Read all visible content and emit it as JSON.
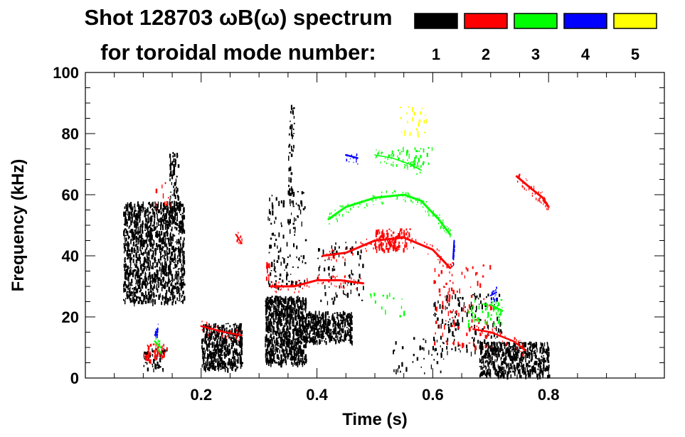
{
  "chart_data": {
    "type": "scatter",
    "title_line1": "Shot 128703 ωB(ω) spectrum",
    "title_line2": "for toroidal mode number:",
    "xlabel": "Time (s)",
    "ylabel": "Frequency (kHz)",
    "xlim": [
      0.0,
      1.0
    ],
    "ylim": [
      0,
      100
    ],
    "x_ticks": [
      {
        "value": 0.2,
        "label": "0.2"
      },
      {
        "value": 0.4,
        "label": "0.4"
      },
      {
        "value": 0.6,
        "label": "0.6"
      },
      {
        "value": 0.8,
        "label": "0.8"
      }
    ],
    "y_ticks": [
      {
        "value": 0,
        "label": "0"
      },
      {
        "value": 20,
        "label": "20"
      },
      {
        "value": 40,
        "label": "40"
      },
      {
        "value": 60,
        "label": "60"
      },
      {
        "value": 80,
        "label": "80"
      },
      {
        "value": 100,
        "label": "100"
      }
    ],
    "legend": {
      "placement": "top-right",
      "entries": [
        {
          "label": "1",
          "color": "#000000"
        },
        {
          "label": "2",
          "color": "#ff0000"
        },
        {
          "label": "3",
          "color": "#00ff00"
        },
        {
          "label": "4",
          "color": "#0000ff"
        },
        {
          "label": "5",
          "color": "#ffff00"
        }
      ]
    },
    "series": [
      {
        "name": "n=1",
        "color": "#000000",
        "regions": [
          {
            "t": [
              0.065,
              0.17
            ],
            "f": [
              25,
              58
            ],
            "density": 0.55,
            "note": "broad burst near 42 kHz"
          },
          {
            "t": [
              0.145,
              0.16
            ],
            "f": [
              52,
              74
            ],
            "density": 0.4
          },
          {
            "t": [
              0.2,
              0.27
            ],
            "f": [
              3,
              18
            ],
            "density": 0.7
          },
          {
            "t": [
              0.31,
              0.38
            ],
            "f": [
              5,
              27
            ],
            "density": 0.85
          },
          {
            "t": [
              0.37,
              0.46
            ],
            "f": [
              12,
              22
            ],
            "density": 0.75
          },
          {
            "t": [
              0.315,
              0.38
            ],
            "f": [
              30,
              62
            ],
            "density": 0.1
          },
          {
            "t": [
              0.35,
              0.36
            ],
            "f": [
              60,
              90
            ],
            "density": 0.25
          },
          {
            "t": [
              0.4,
              0.48
            ],
            "f": [
              25,
              45
            ],
            "density": 0.08
          },
          {
            "t": [
              0.1,
              0.14
            ],
            "f": [
              3,
              10
            ],
            "density": 0.3
          },
          {
            "t": [
              0.68,
              0.8
            ],
            "f": [
              1,
              12
            ],
            "density": 0.6
          },
          {
            "t": [
              0.6,
              0.72
            ],
            "f": [
              8,
              28
            ],
            "density": 0.1
          },
          {
            "t": [
              0.53,
              0.62
            ],
            "f": [
              1,
              14
            ],
            "density": 0.05
          }
        ],
        "lines": []
      },
      {
        "name": "n=2",
        "color": "#ff0000",
        "regions": [
          {
            "t": [
              0.1,
              0.14
            ],
            "f": [
              6,
              12
            ],
            "density": 0.3
          },
          {
            "t": [
              0.12,
              0.15
            ],
            "f": [
              55,
              65
            ],
            "density": 0.06
          },
          {
            "t": [
              0.5,
              0.56
            ],
            "f": [
              42,
              49
            ],
            "density": 0.45
          },
          {
            "t": [
              0.6,
              0.7
            ],
            "f": [
              10,
              38
            ],
            "density": 0.06
          },
          {
            "t": [
              0.31,
              0.32
            ],
            "f": [
              33,
              38
            ],
            "density": 0.3
          }
        ],
        "lines": [
          {
            "points": [
              [
                0.41,
                40
              ],
              [
                0.45,
                41
              ],
              [
                0.5,
                45
              ],
              [
                0.55,
                46
              ],
              [
                0.6,
                42
              ],
              [
                0.63,
                36
              ]
            ],
            "width": 3.0
          },
          {
            "points": [
              [
                0.32,
                30
              ],
              [
                0.36,
                30
              ],
              [
                0.4,
                32
              ],
              [
                0.44,
                32
              ],
              [
                0.48,
                31
              ]
            ],
            "width": 3.0
          },
          {
            "points": [
              [
                0.2,
                17
              ],
              [
                0.24,
                15
              ],
              [
                0.27,
                14
              ]
            ],
            "width": 2.5
          },
          {
            "points": [
              [
                0.67,
                16
              ],
              [
                0.7,
                15
              ],
              [
                0.74,
                12
              ],
              [
                0.76,
                9
              ]
            ],
            "width": 2.5
          },
          {
            "points": [
              [
                0.745,
                66
              ],
              [
                0.77,
                62
              ],
              [
                0.79,
                59
              ],
              [
                0.8,
                56
              ]
            ],
            "width": 3.0
          },
          {
            "points": [
              [
                0.26,
                47
              ],
              [
                0.27,
                44
              ]
            ],
            "width": 2.0
          }
        ]
      },
      {
        "name": "n=3",
        "color": "#00ff00",
        "regions": [
          {
            "t": [
              0.52,
              0.6
            ],
            "f": [
              70,
              76
            ],
            "density": 0.12
          },
          {
            "t": [
              0.66,
              0.72
            ],
            "f": [
              18,
              26
            ],
            "density": 0.15
          },
          {
            "t": [
              0.49,
              0.55
            ],
            "f": [
              20,
              28
            ],
            "density": 0.05
          }
        ],
        "lines": [
          {
            "points": [
              [
                0.42,
                52
              ],
              [
                0.45,
                56
              ],
              [
                0.5,
                59
              ],
              [
                0.55,
                60
              ],
              [
                0.58,
                58
              ],
              [
                0.61,
                52
              ],
              [
                0.63,
                47
              ]
            ],
            "width": 3.0
          },
          {
            "points": [
              [
                0.12,
                12
              ],
              [
                0.13,
                10
              ]
            ],
            "width": 2.5
          },
          {
            "points": [
              [
                0.5,
                73
              ],
              [
                0.53,
                72
              ],
              [
                0.56,
                70
              ],
              [
                0.58,
                68
              ]
            ],
            "width": 1.5
          },
          {
            "points": [
              [
                0.7,
                24
              ],
              [
                0.72,
                22
              ]
            ],
            "width": 2.5
          }
        ]
      },
      {
        "name": "n=4",
        "color": "#0000ff",
        "regions": [],
        "lines": [
          {
            "points": [
              [
                0.45,
                73
              ],
              [
                0.47,
                72
              ]
            ],
            "width": 2.5
          },
          {
            "points": [
              [
                0.635,
                39
              ],
              [
                0.637,
                45
              ]
            ],
            "width": 2.0
          },
          {
            "points": [
              [
                0.12,
                14
              ],
              [
                0.125,
                16
              ]
            ],
            "width": 2.0
          },
          {
            "points": [
              [
                0.7,
                27
              ],
              [
                0.71,
                28
              ]
            ],
            "width": 2.0
          }
        ]
      },
      {
        "name": "n=5",
        "color": "#ffff00",
        "regions": [
          {
            "t": [
              0.54,
              0.59
            ],
            "f": [
              80,
              89
            ],
            "density": 0.08
          }
        ],
        "lines": []
      }
    ]
  }
}
